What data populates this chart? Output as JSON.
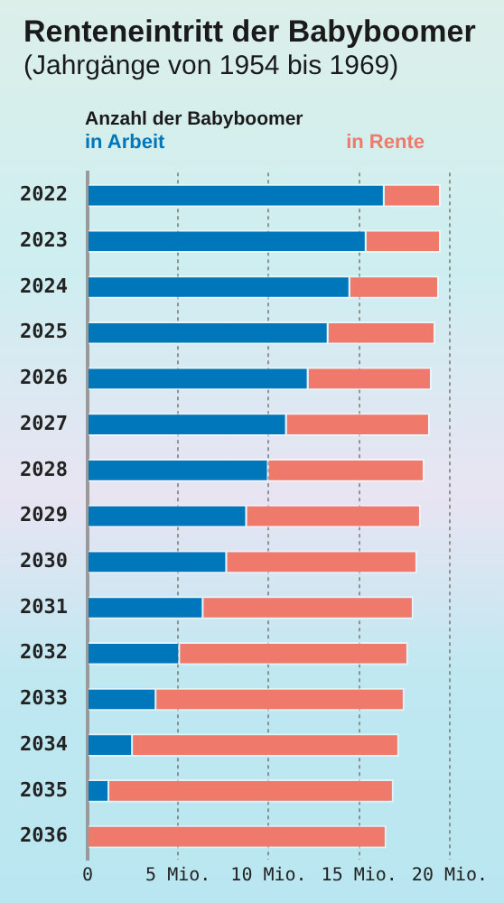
{
  "chart_data": {
    "type": "bar",
    "orientation": "horizontal",
    "stacked": true,
    "title": "Renteneintritt der Babyboomer",
    "subtitle": "(Jahrgänge von 1954 bis 1969)",
    "legend_title": "Anzahl der Babyboomer",
    "legend": "top",
    "grid": "x",
    "categories": [
      "2022",
      "2023",
      "2024",
      "2025",
      "2026",
      "2027",
      "2028",
      "2029",
      "2030",
      "2031",
      "2032",
      "2033",
      "2034",
      "2035",
      "2036"
    ],
    "series": [
      {
        "name": "in Arbeit",
        "color": "#0077bb",
        "values": [
          16.4,
          15.4,
          14.5,
          13.3,
          12.2,
          11.0,
          10.0,
          8.8,
          7.7,
          6.4,
          5.1,
          3.8,
          2.5,
          1.2,
          0
        ]
      },
      {
        "name": "in Rente",
        "color": "#ef7a6c",
        "values": [
          3.1,
          4.1,
          4.9,
          5.9,
          6.8,
          7.9,
          8.6,
          9.6,
          10.5,
          11.6,
          12.6,
          13.7,
          14.7,
          15.7,
          16.5
        ]
      }
    ],
    "xlim": [
      0,
      20
    ],
    "xticks": [
      0,
      {
        "value": 5,
        "label": "5 Mio."
      },
      {
        "value": 10,
        "label": "10 Mio."
      },
      {
        "value": 15,
        "label": "15 Mio."
      },
      {
        "value": 20,
        "label": "20 Mio."
      }
    ]
  }
}
